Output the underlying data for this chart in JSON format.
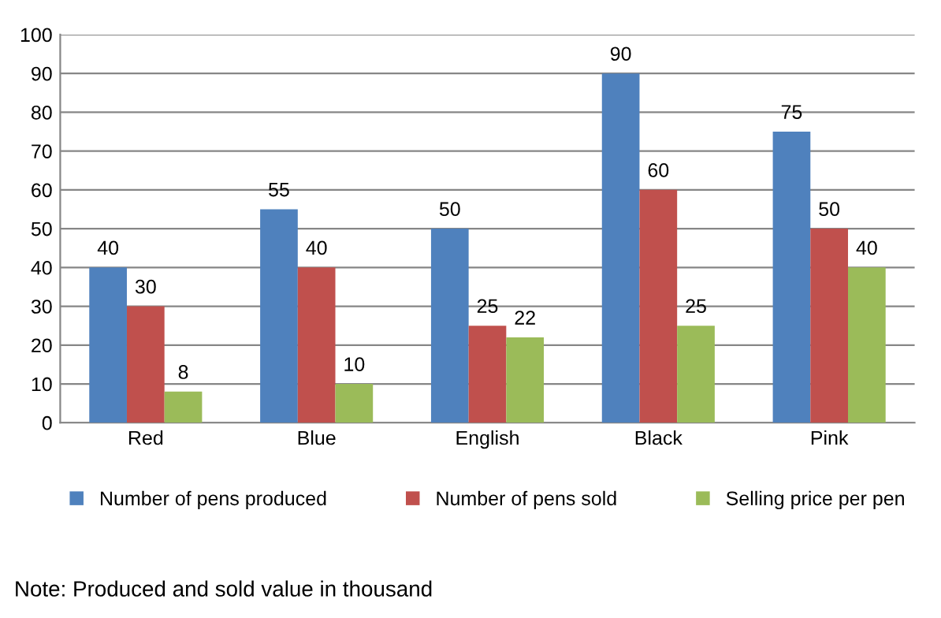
{
  "chart_data": {
    "type": "bar",
    "categories": [
      "Red",
      "Blue",
      "English",
      "Black",
      "Pink"
    ],
    "series": [
      {
        "name": "Number of pens produced",
        "color": "#4f81bd",
        "values": [
          40,
          55,
          50,
          90,
          75
        ]
      },
      {
        "name": "Number of pens sold",
        "color": "#c0504d",
        "values": [
          30,
          40,
          25,
          60,
          50
        ]
      },
      {
        "name": "Selling price per pen",
        "color": "#9bbb59",
        "values": [
          8,
          10,
          22,
          25,
          40
        ]
      }
    ],
    "ylim": [
      0,
      100
    ],
    "yticks": [
      0,
      10,
      20,
      30,
      40,
      50,
      60,
      70,
      80,
      90,
      100
    ],
    "grid": "y",
    "legend": "bottom",
    "data_labels": true,
    "annotations": [
      "Note: Produced and sold value in thousand"
    ]
  }
}
